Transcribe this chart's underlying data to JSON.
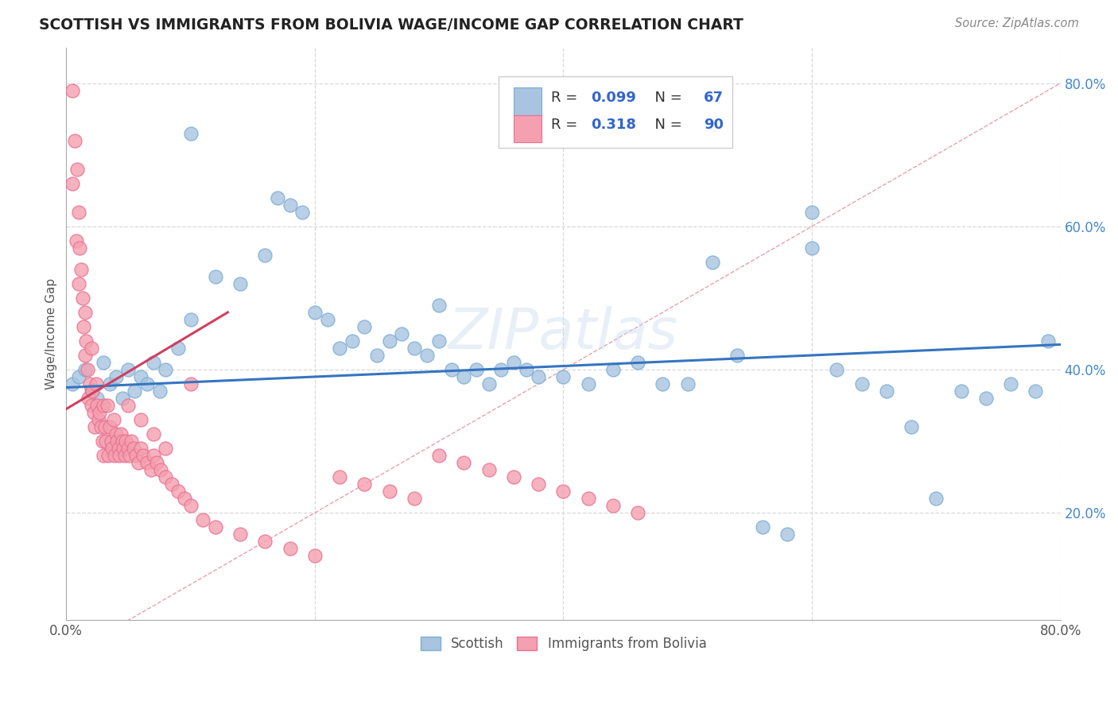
{
  "title": "SCOTTISH VS IMMIGRANTS FROM BOLIVIA WAGE/INCOME GAP CORRELATION CHART",
  "source": "Source: ZipAtlas.com",
  "ylabel": "Wage/Income Gap",
  "xlim": [
    0.0,
    0.8
  ],
  "ylim": [
    0.05,
    0.85
  ],
  "y_ticks": [
    0.2,
    0.4,
    0.6,
    0.8
  ],
  "y_tick_labels": [
    "20.0%",
    "40.0%",
    "60.0%",
    "80.0%"
  ],
  "blue_color": "#a8c4e0",
  "pink_color": "#f4a0b0",
  "blue_edge_color": "#7aadd4",
  "pink_edge_color": "#e87090",
  "blue_line_color": "#3575c0",
  "pink_line_color": "#d04060",
  "diag_line_color": "#e8a0b0",
  "grid_color": "#d8d8d8",
  "legend_title_blue": "Scottish",
  "legend_title_pink": "Immigrants from Bolivia",
  "R_blue": 0.099,
  "N_blue": 67,
  "R_pink": 0.318,
  "N_pink": 90,
  "blue_scatter_x": [
    0.005,
    0.01,
    0.015,
    0.02,
    0.025,
    0.03,
    0.035,
    0.04,
    0.045,
    0.05,
    0.055,
    0.06,
    0.065,
    0.07,
    0.075,
    0.08,
    0.09,
    0.1,
    0.12,
    0.14,
    0.16,
    0.17,
    0.18,
    0.19,
    0.2,
    0.21,
    0.22,
    0.23,
    0.24,
    0.25,
    0.26,
    0.27,
    0.28,
    0.29,
    0.3,
    0.31,
    0.32,
    0.33,
    0.34,
    0.35,
    0.36,
    0.37,
    0.38,
    0.4,
    0.42,
    0.44,
    0.46,
    0.48,
    0.5,
    0.52,
    0.54,
    0.56,
    0.58,
    0.6,
    0.62,
    0.64,
    0.66,
    0.68,
    0.7,
    0.72,
    0.74,
    0.76,
    0.78,
    0.79,
    0.6,
    0.3,
    0.1
  ],
  "blue_scatter_y": [
    0.38,
    0.39,
    0.4,
    0.37,
    0.36,
    0.41,
    0.38,
    0.39,
    0.36,
    0.4,
    0.37,
    0.39,
    0.38,
    0.41,
    0.37,
    0.4,
    0.43,
    0.47,
    0.53,
    0.52,
    0.56,
    0.64,
    0.63,
    0.62,
    0.48,
    0.47,
    0.43,
    0.44,
    0.46,
    0.42,
    0.44,
    0.45,
    0.43,
    0.42,
    0.44,
    0.4,
    0.39,
    0.4,
    0.38,
    0.4,
    0.41,
    0.4,
    0.39,
    0.39,
    0.38,
    0.4,
    0.41,
    0.38,
    0.38,
    0.55,
    0.42,
    0.18,
    0.17,
    0.57,
    0.4,
    0.38,
    0.37,
    0.32,
    0.22,
    0.37,
    0.36,
    0.38,
    0.37,
    0.44,
    0.62,
    0.49,
    0.73
  ],
  "pink_scatter_x": [
    0.005,
    0.005,
    0.007,
    0.008,
    0.009,
    0.01,
    0.01,
    0.011,
    0.012,
    0.013,
    0.014,
    0.015,
    0.015,
    0.016,
    0.017,
    0.018,
    0.019,
    0.02,
    0.02,
    0.021,
    0.022,
    0.023,
    0.024,
    0.025,
    0.026,
    0.027,
    0.028,
    0.029,
    0.03,
    0.03,
    0.031,
    0.032,
    0.033,
    0.034,
    0.035,
    0.036,
    0.037,
    0.038,
    0.039,
    0.04,
    0.041,
    0.042,
    0.043,
    0.044,
    0.045,
    0.046,
    0.047,
    0.048,
    0.05,
    0.051,
    0.052,
    0.054,
    0.056,
    0.058,
    0.06,
    0.062,
    0.065,
    0.068,
    0.07,
    0.073,
    0.076,
    0.08,
    0.085,
    0.09,
    0.095,
    0.1,
    0.11,
    0.12,
    0.14,
    0.16,
    0.18,
    0.2,
    0.22,
    0.24,
    0.26,
    0.28,
    0.3,
    0.32,
    0.34,
    0.36,
    0.38,
    0.4,
    0.42,
    0.44,
    0.46,
    0.1,
    0.05,
    0.06,
    0.07,
    0.08
  ],
  "pink_scatter_y": [
    0.79,
    0.66,
    0.72,
    0.58,
    0.68,
    0.62,
    0.52,
    0.57,
    0.54,
    0.5,
    0.46,
    0.48,
    0.42,
    0.44,
    0.4,
    0.36,
    0.38,
    0.35,
    0.43,
    0.37,
    0.34,
    0.32,
    0.38,
    0.35,
    0.33,
    0.34,
    0.32,
    0.3,
    0.35,
    0.28,
    0.32,
    0.3,
    0.35,
    0.28,
    0.32,
    0.3,
    0.29,
    0.33,
    0.28,
    0.31,
    0.3,
    0.29,
    0.28,
    0.31,
    0.3,
    0.29,
    0.28,
    0.3,
    0.29,
    0.28,
    0.3,
    0.29,
    0.28,
    0.27,
    0.29,
    0.28,
    0.27,
    0.26,
    0.28,
    0.27,
    0.26,
    0.25,
    0.24,
    0.23,
    0.22,
    0.21,
    0.19,
    0.18,
    0.17,
    0.16,
    0.15,
    0.14,
    0.25,
    0.24,
    0.23,
    0.22,
    0.28,
    0.27,
    0.26,
    0.25,
    0.24,
    0.23,
    0.22,
    0.21,
    0.2,
    0.38,
    0.35,
    0.33,
    0.31,
    0.29
  ],
  "blue_line_x0": 0.0,
  "blue_line_y0": 0.375,
  "blue_line_x1": 0.8,
  "blue_line_y1": 0.435,
  "pink_line_x0": 0.0,
  "pink_line_y0": 0.345,
  "pink_line_x1": 0.13,
  "pink_line_y1": 0.48
}
